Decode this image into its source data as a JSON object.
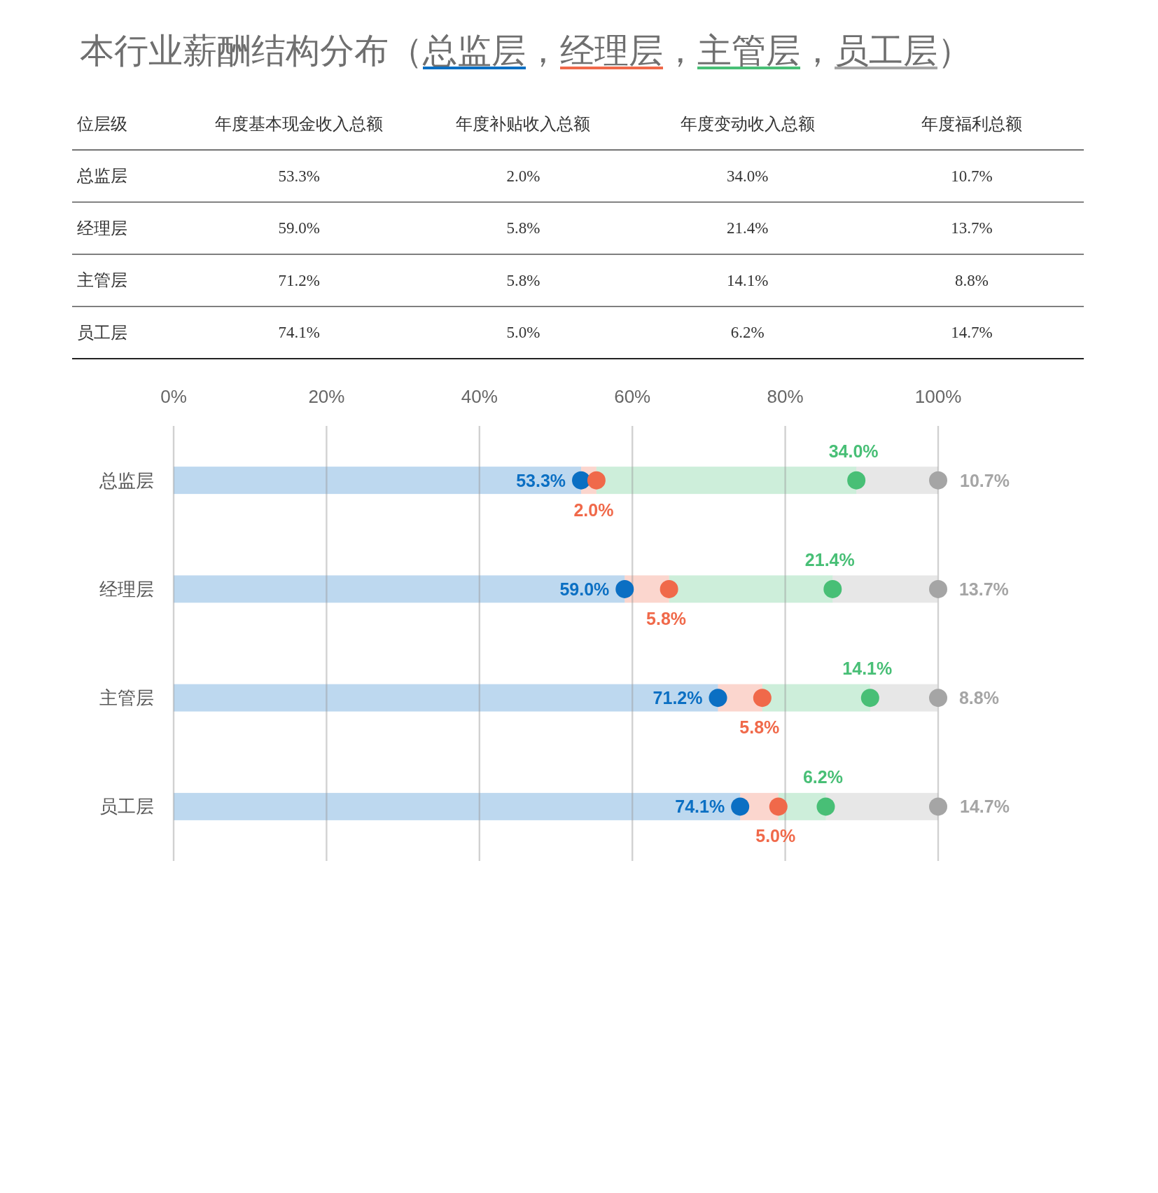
{
  "chart_data": {
    "type": "bar",
    "orientation": "horizontal",
    "stacked": true,
    "title": "本行业薪酬结构分布（总监层，经理层，主管层，员工层）",
    "annotations": [
      "位层级",
      "年度基本现金收入总额",
      "年度补贴收入总额",
      "年度变动收入总额",
      "年度福利总额"
    ],
    "categories": [
      "总监层",
      "经理层",
      "主管层",
      "员工层"
    ],
    "series": [
      {
        "color": "#0b6fc3",
        "values": [
          53.3,
          59.0,
          71.2,
          74.1
        ],
        "value_labels": [
          "53.3%",
          "59.0%",
          "71.2%",
          "74.1%"
        ]
      },
      {
        "color": "#f0694a",
        "values": [
          2.0,
          5.8,
          5.8,
          5.0
        ],
        "value_labels": [
          "2.0%",
          "5.8%",
          "5.8%",
          "5.0%"
        ]
      },
      {
        "color": "#48bf76",
        "values": [
          34.0,
          21.4,
          14.1,
          6.2
        ],
        "value_labels": [
          "34.0%",
          "21.4%",
          "14.1%",
          "6.2%"
        ]
      },
      {
        "color": "#a5a5a5",
        "values": [
          10.7,
          13.7,
          8.8,
          14.7
        ],
        "value_labels": [
          "10.7%",
          "13.7%",
          "8.8%",
          "14.7%"
        ]
      },
      {
        "type": "scatter",
        "color": "#0b6fc3",
        "values": [
          53.3,
          59.0,
          71.2,
          74.1
        ]
      },
      {
        "type": "scatter",
        "color": "#f0694a",
        "values": [
          55.3,
          64.8,
          77.0,
          79.1
        ]
      },
      {
        "type": "scatter",
        "color": "#48bf76",
        "values": [
          89.3,
          86.2,
          91.1,
          85.3
        ]
      },
      {
        "type": "scatter",
        "color": "#a5a5a5",
        "values": [
          100,
          100,
          100,
          100
        ]
      }
    ],
    "xlim": [
      0,
      100
    ],
    "xticks": [
      {
        "value": 0,
        "label": "0%"
      },
      {
        "value": 20,
        "label": "20%"
      },
      {
        "value": 40,
        "label": "40%"
      },
      {
        "value": 60,
        "label": "60%"
      },
      {
        "value": 80,
        "label": "80%"
      },
      {
        "value": 100,
        "label": "100%"
      }
    ],
    "grid": "x",
    "marker": "circle"
  }
}
